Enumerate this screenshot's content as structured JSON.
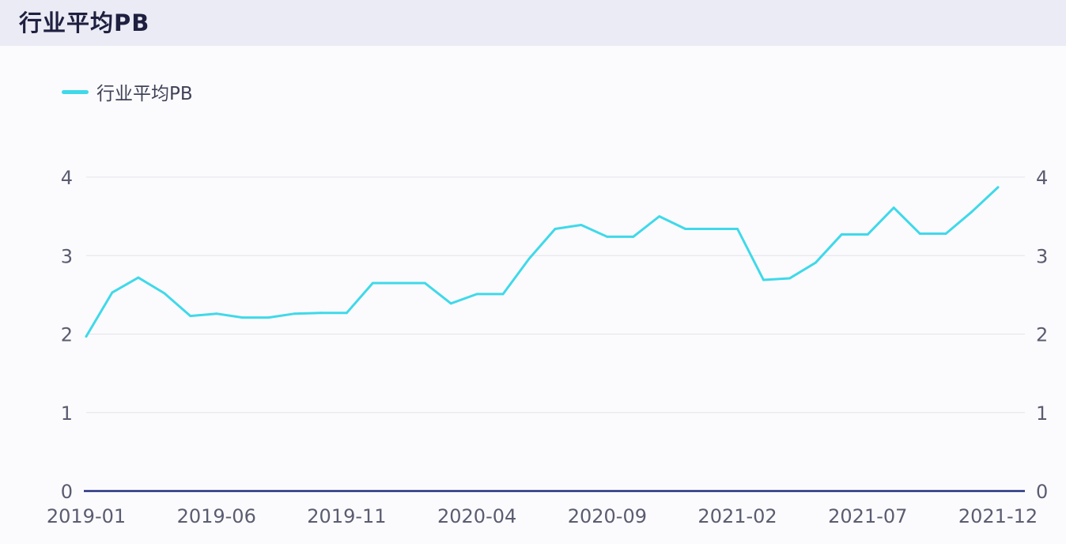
{
  "header": {
    "title": "行业平均PB"
  },
  "colors": {
    "series": "#3fd9ea",
    "axis": "#24317f",
    "grid": "#e3e4ea",
    "tick_text": "#5a5c70"
  },
  "chart_data": {
    "type": "line",
    "title": "行业平均PB",
    "legend": {
      "position": "top-left",
      "entries": [
        "行业平均PB"
      ]
    },
    "grid": true,
    "ylim": [
      0,
      4
    ],
    "y_ticks": [
      "0",
      "1",
      "2",
      "3",
      "4"
    ],
    "y_axis_right": true,
    "x_tick_labels": [
      "2019-01",
      "2019-06",
      "2019-11",
      "2020-04",
      "2020-09",
      "2021-02",
      "2021-07",
      "2021-12"
    ],
    "x": [
      "2019-01",
      "2019-02",
      "2019-03",
      "2019-04",
      "2019-05",
      "2019-06",
      "2019-07",
      "2019-08",
      "2019-09",
      "2019-10",
      "2019-11",
      "2019-12",
      "2020-01",
      "2020-02",
      "2020-03",
      "2020-04",
      "2020-05",
      "2020-06",
      "2020-07",
      "2020-08",
      "2020-09",
      "2020-10",
      "2020-11",
      "2020-12",
      "2021-01",
      "2021-02",
      "2021-03",
      "2021-04",
      "2021-05",
      "2021-06",
      "2021-07",
      "2021-08",
      "2021-09",
      "2021-10",
      "2021-11",
      "2021-12"
    ],
    "series": [
      {
        "name": "行业平均PB",
        "values": [
          1.97,
          2.53,
          2.72,
          2.52,
          2.23,
          2.26,
          2.21,
          2.21,
          2.26,
          2.27,
          2.27,
          2.65,
          2.65,
          2.65,
          2.39,
          2.51,
          2.51,
          2.96,
          3.34,
          3.39,
          3.24,
          3.24,
          3.5,
          3.34,
          3.34,
          3.34,
          2.69,
          2.71,
          2.91,
          3.27,
          3.27,
          3.61,
          3.28,
          3.28,
          3.56,
          3.87
        ]
      }
    ]
  }
}
